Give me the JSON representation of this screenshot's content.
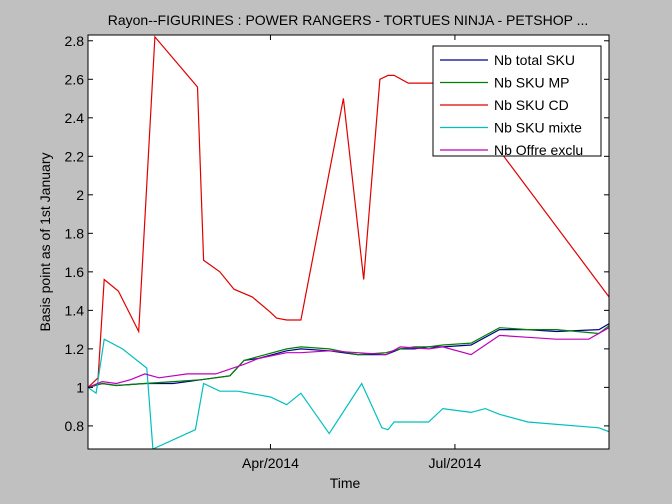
{
  "figure": {
    "background": "#c0c0c0",
    "axes_background": "#ffffff"
  },
  "chart_data": {
    "type": "line",
    "title": "Rayon--FIGURINES : POWER RANGERS - TORTUES NINJA - PETSHOP ...",
    "xlabel": "Time",
    "ylabel": "Basis point as of 1st January",
    "xlim": [
      "2014-01-01",
      "2014-09-15"
    ],
    "ylim": [
      0.68,
      2.83
    ],
    "x_ticks": [
      {
        "label": "Apr/2014",
        "x": "2014-04-01"
      },
      {
        "label": "Jul/2014",
        "x": "2014-07-01"
      }
    ],
    "y_ticks": [
      0.8,
      1,
      1.2,
      1.4,
      1.6,
      1.8,
      2,
      2.2,
      2.4,
      2.6,
      2.8
    ],
    "grid": false,
    "legend_position": "top-right",
    "series": [
      {
        "name": "Nb total SKU",
        "color": "#00008b",
        "points": [
          [
            "2014-01-01",
            1.0
          ],
          [
            "2014-01-08",
            1.02
          ],
          [
            "2014-01-15",
            1.01
          ],
          [
            "2014-01-29",
            1.02
          ],
          [
            "2014-02-12",
            1.02
          ],
          [
            "2014-02-26",
            1.04
          ],
          [
            "2014-03-12",
            1.06
          ],
          [
            "2014-03-19",
            1.14
          ],
          [
            "2014-03-26",
            1.15
          ],
          [
            "2014-04-09",
            1.19
          ],
          [
            "2014-04-16",
            1.2
          ],
          [
            "2014-04-30",
            1.19
          ],
          [
            "2014-05-14",
            1.17
          ],
          [
            "2014-05-28",
            1.17
          ],
          [
            "2014-06-04",
            1.2
          ],
          [
            "2014-06-11",
            1.2
          ],
          [
            "2014-06-18",
            1.21
          ],
          [
            "2014-06-25",
            1.21
          ],
          [
            "2014-07-09",
            1.22
          ],
          [
            "2014-07-23",
            1.3
          ],
          [
            "2014-08-06",
            1.3
          ],
          [
            "2014-08-20",
            1.29
          ],
          [
            "2014-09-10",
            1.3
          ],
          [
            "2014-09-15",
            1.33
          ]
        ]
      },
      {
        "name": "Nb SKU MP",
        "color": "#008000",
        "points": [
          [
            "2014-01-01",
            1.0
          ],
          [
            "2014-01-08",
            1.02
          ],
          [
            "2014-01-15",
            1.01
          ],
          [
            "2014-01-29",
            1.02
          ],
          [
            "2014-02-12",
            1.03
          ],
          [
            "2014-02-26",
            1.04
          ],
          [
            "2014-03-12",
            1.06
          ],
          [
            "2014-03-19",
            1.14
          ],
          [
            "2014-03-26",
            1.16
          ],
          [
            "2014-04-09",
            1.2
          ],
          [
            "2014-04-16",
            1.21
          ],
          [
            "2014-04-30",
            1.2
          ],
          [
            "2014-05-14",
            1.17
          ],
          [
            "2014-05-28",
            1.18
          ],
          [
            "2014-06-04",
            1.2
          ],
          [
            "2014-06-11",
            1.21
          ],
          [
            "2014-06-18",
            1.21
          ],
          [
            "2014-06-25",
            1.22
          ],
          [
            "2014-07-09",
            1.23
          ],
          [
            "2014-07-23",
            1.31
          ],
          [
            "2014-08-06",
            1.3
          ],
          [
            "2014-08-20",
            1.3
          ],
          [
            "2014-09-10",
            1.28
          ],
          [
            "2014-09-15",
            1.32
          ]
        ]
      },
      {
        "name": "Nb SKU CD",
        "color": "#e00000",
        "points": [
          [
            "2014-01-01",
            1.0
          ],
          [
            "2014-01-06",
            1.05
          ],
          [
            "2014-01-09",
            1.56
          ],
          [
            "2014-01-16",
            1.5
          ],
          [
            "2014-01-26",
            1.29
          ],
          [
            "2014-02-03",
            2.82
          ],
          [
            "2014-02-24",
            2.56
          ],
          [
            "2014-02-27",
            1.66
          ],
          [
            "2014-03-07",
            1.6
          ],
          [
            "2014-03-14",
            1.51
          ],
          [
            "2014-03-23",
            1.47
          ],
          [
            "2014-04-01",
            1.39
          ],
          [
            "2014-04-04",
            1.36
          ],
          [
            "2014-04-09",
            1.35
          ],
          [
            "2014-04-16",
            1.35
          ],
          [
            "2014-05-07",
            2.5
          ],
          [
            "2014-05-17",
            1.56
          ],
          [
            "2014-05-25",
            2.6
          ],
          [
            "2014-05-29",
            2.62
          ],
          [
            "2014-06-01",
            2.62
          ],
          [
            "2014-06-08",
            2.58
          ],
          [
            "2014-06-20",
            2.58
          ],
          [
            "2014-07-08",
            2.39
          ],
          [
            "2014-07-23",
            2.23
          ],
          [
            "2014-09-15",
            1.47
          ]
        ]
      },
      {
        "name": "Nb SKU mixte",
        "color": "#00bfbf",
        "points": [
          [
            "2014-01-01",
            1.0
          ],
          [
            "2014-01-05",
            0.97
          ],
          [
            "2014-01-09",
            1.25
          ],
          [
            "2014-01-18",
            1.2
          ],
          [
            "2014-01-30",
            1.1
          ],
          [
            "2014-02-02",
            0.68
          ],
          [
            "2014-02-23",
            0.78
          ],
          [
            "2014-02-27",
            1.02
          ],
          [
            "2014-03-07",
            0.98
          ],
          [
            "2014-03-16",
            0.98
          ],
          [
            "2014-04-01",
            0.95
          ],
          [
            "2014-04-09",
            0.91
          ],
          [
            "2014-04-16",
            0.97
          ],
          [
            "2014-04-30",
            0.76
          ],
          [
            "2014-05-16",
            1.02
          ],
          [
            "2014-05-26",
            0.79
          ],
          [
            "2014-05-29",
            0.78
          ],
          [
            "2014-06-01",
            0.82
          ],
          [
            "2014-06-18",
            0.82
          ],
          [
            "2014-06-25",
            0.89
          ],
          [
            "2014-07-02",
            0.88
          ],
          [
            "2014-07-09",
            0.87
          ],
          [
            "2014-07-16",
            0.89
          ],
          [
            "2014-07-23",
            0.86
          ],
          [
            "2014-08-06",
            0.82
          ],
          [
            "2014-09-10",
            0.79
          ],
          [
            "2014-09-15",
            0.77
          ]
        ]
      },
      {
        "name": "Nb Offre exclu",
        "color": "#bf00bf",
        "points": [
          [
            "2014-01-01",
            1.0
          ],
          [
            "2014-01-08",
            1.03
          ],
          [
            "2014-01-15",
            1.02
          ],
          [
            "2014-01-22",
            1.04
          ],
          [
            "2014-01-29",
            1.07
          ],
          [
            "2014-02-05",
            1.05
          ],
          [
            "2014-02-19",
            1.07
          ],
          [
            "2014-03-05",
            1.07
          ],
          [
            "2014-03-19",
            1.12
          ],
          [
            "2014-03-26",
            1.15
          ],
          [
            "2014-04-09",
            1.18
          ],
          [
            "2014-04-16",
            1.18
          ],
          [
            "2014-04-30",
            1.19
          ],
          [
            "2014-05-14",
            1.18
          ],
          [
            "2014-05-28",
            1.17
          ],
          [
            "2014-06-04",
            1.21
          ],
          [
            "2014-06-18",
            1.2
          ],
          [
            "2014-06-25",
            1.21
          ],
          [
            "2014-07-09",
            1.17
          ],
          [
            "2014-07-23",
            1.27
          ],
          [
            "2014-08-06",
            1.26
          ],
          [
            "2014-08-20",
            1.25
          ],
          [
            "2014-09-05",
            1.25
          ],
          [
            "2014-09-15",
            1.31
          ]
        ]
      }
    ]
  }
}
